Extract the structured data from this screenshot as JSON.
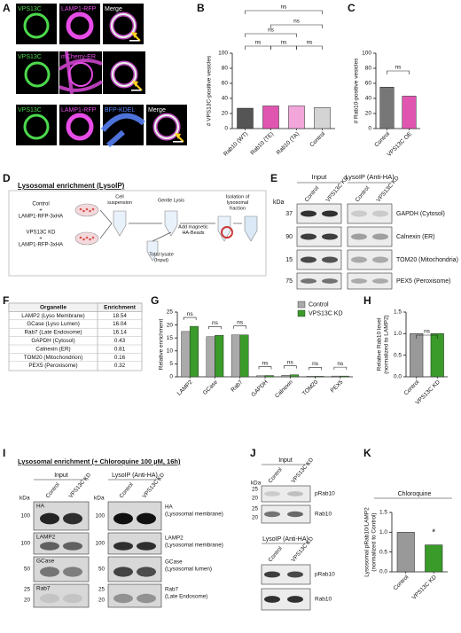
{
  "panel_letters": [
    "A",
    "B",
    "C",
    "D",
    "E",
    "F",
    "G",
    "H",
    "I",
    "J",
    "K"
  ],
  "panel_a": {
    "rows": [
      [
        "VPS13C",
        "LAMP1-RFP",
        "Merge"
      ],
      [
        "VPS13C",
        "mCherry-ER"
      ],
      [
        "VPS13C",
        "LAMP1-RFP",
        "BFP-KDEL",
        "Merge"
      ]
    ]
  },
  "panel_d": {
    "title": "Lysosomal enrichment (LysoIP)",
    "control": [
      "Control",
      "+",
      "LAMP1-RFP-3xHA"
    ],
    "knockdown": [
      "VPS13C KD",
      "+",
      "LAMP1-RFP-3xHA"
    ],
    "steps": [
      [
        "Cell",
        "suspension"
      ],
      [
        "Gentle Lysis"
      ],
      [
        "Add magnetic",
        "HA-Beads"
      ],
      [
        "Isolation of",
        "lysosomal",
        "fraction"
      ],
      [
        "Total lysate",
        "(Input)"
      ]
    ]
  },
  "panel_e": {
    "kda_label": "kDa",
    "groups": [
      "Input",
      "LysoIP (Anti-HA)"
    ],
    "lanes": [
      "Control",
      "VPS13C KD"
    ],
    "blots": [
      {
        "kda": 37,
        "label": "GAPDH (Cytosol)"
      },
      {
        "kda": 90,
        "label": "Calnexin (ER)"
      },
      {
        "kda": 15,
        "label": "TOM20 (Mitochondria)"
      },
      {
        "kda": 75,
        "label": "PEX5 (Peroxisome)"
      }
    ]
  },
  "table": {
    "header": [
      "Organelle",
      "Enrichment"
    ],
    "rows": [
      [
        "LAMP2 (Lyso Membrane)",
        18.54
      ],
      [
        "GCase (Lyso Lumen)",
        16.04
      ],
      [
        "Rab7 (Late Endosome)",
        16.14
      ],
      [
        "GAPDH (Cytosol)",
        0.43
      ],
      [
        "Calnexin (ER)",
        0.81
      ],
      [
        "TOM20 (Mitochondrion)",
        0.16
      ],
      [
        "PEX5 (Peroxisome)",
        0.32
      ]
    ]
  },
  "panel_i": {
    "title": "Lysosomal enrichment (+ Chloroquine 100 µM, 16h)",
    "kda_label": "kDa",
    "lanes": [
      "Control",
      "VPS13C KD"
    ],
    "input": {
      "heading": "Input",
      "blots": [
        {
          "kda": [
            100
          ],
          "label": [
            "HA"
          ]
        },
        {
          "kda": [
            100
          ],
          "label": [
            "LAMP2"
          ]
        },
        {
          "kda": [
            50
          ],
          "label": [
            "GCase"
          ]
        },
        {
          "kda": [
            25,
            20
          ],
          "label": [
            "Rab7"
          ]
        }
      ]
    },
    "lysoip": {
      "heading": "LysoIP (Anti-HA)",
      "blots": [
        {
          "kda": [
            100
          ],
          "label": [
            "HA",
            "(Lysosomal membrane)"
          ]
        },
        {
          "kda": [
            100
          ],
          "label": [
            "LAMP2",
            "(Lysosomal membrane)"
          ]
        },
        {
          "kda": [
            50
          ],
          "label": [
            "GCase",
            "(Lysosomal lumen)"
          ]
        },
        {
          "kda": [
            25,
            20
          ],
          "label": [
            "Rab7",
            "(Late Endosome)"
          ]
        }
      ]
    }
  },
  "panel_j": {
    "kda_label": "kDa",
    "lanes": [
      "Control",
      "VPS13C KD"
    ],
    "input": {
      "heading": "Input",
      "blots": [
        {
          "kda": [
            25,
            20
          ],
          "label": "pRab10"
        },
        {
          "kda": [
            25,
            20
          ],
          "label": "Rab10"
        }
      ]
    },
    "lysoip": {
      "heading": "LysoIP (Anti-HA)",
      "blots": [
        {
          "label": "pRab10"
        },
        {
          "label": "Rab10"
        }
      ]
    }
  },
  "chart_data": [
    {
      "type": "bar",
      "y_label": [
        "# VPS13C-positive vesicles"
      ],
      "categories": [
        "Rab10 (WT)",
        "Rab10 (TE)",
        "Rab10 (TA)",
        "Control"
      ],
      "values": [
        27,
        30,
        30,
        28
      ],
      "colors": [
        "#555555",
        "#e055b0",
        "#f2a6da",
        "#d4d4d4"
      ],
      "ylim": [
        0,
        100
      ],
      "yticks": [
        0,
        20,
        40,
        60,
        80,
        100
      ],
      "annotations": [
        "ns",
        "ns",
        "ns",
        "ns",
        "ns",
        "ns"
      ]
    },
    {
      "type": "bar",
      "y_label": [
        "# Rab10-positive vesicles"
      ],
      "categories": [
        "Control",
        "VPS13C OE"
      ],
      "values": [
        55,
        43
      ],
      "colors": [
        "#777777",
        "#e055b0"
      ],
      "ylim": [
        0,
        100
      ],
      "yticks": [
        0,
        20,
        40,
        60,
        80,
        100
      ],
      "annotations": [
        "ns"
      ]
    },
    {
      "type": "grouped_bar",
      "y_label": [
        "Relative enrichment"
      ],
      "categories": [
        "LAMP2",
        "GCase",
        "Rab7",
        "GAPDH",
        "Calnexin",
        "TOM20",
        "PEX5"
      ],
      "series": [
        {
          "name": "Control",
          "color": "#aaaaaa",
          "values": [
            17.5,
            15.5,
            16.2,
            0.4,
            0.6,
            0.2,
            0.3
          ]
        },
        {
          "name": "VPS13C KD",
          "color": "#3a9a2a",
          "values": [
            19.5,
            16,
            16.2,
            0.5,
            0.8,
            0.2,
            0.3
          ]
        }
      ],
      "ylim": [
        0,
        25
      ],
      "yticks": [
        0,
        5,
        10,
        15,
        20,
        25
      ],
      "annotations": [
        "ns",
        "ns",
        "ns",
        "ns",
        "ns",
        "ns",
        "ns"
      ]
    },
    {
      "type": "bar",
      "y_label": [
        "Relative Rab10 level",
        "(normalized to LAMP2)"
      ],
      "categories": [
        "Control",
        "VPS13C KD"
      ],
      "values": [
        1,
        1
      ],
      "colors": [
        "#999999",
        "#3a9a2a"
      ],
      "ylim": [
        0,
        1.5
      ],
      "yticks": [
        {
          "value": 0,
          "label": "0.0"
        },
        0.5,
        {
          "value": 1,
          "label": "1.0"
        },
        1.5
      ],
      "annotations": [
        "ns"
      ]
    },
    {
      "type": "bar",
      "title": "Chloroquine",
      "y_label": [
        "Lysosomal pRab10/LAMP2",
        "(normalized to Control)"
      ],
      "categories": [
        "Control",
        "VPS13C KD"
      ],
      "values": [
        1,
        0.68
      ],
      "colors": [
        "#999999",
        "#3a9a2a"
      ],
      "ylim": [
        0,
        1.5
      ],
      "yticks": [
        {
          "value": 0,
          "label": "0.0"
        },
        0.5,
        {
          "value": 1,
          "label": "1.0"
        },
        1.5
      ],
      "annotations": [
        "*"
      ]
    }
  ]
}
